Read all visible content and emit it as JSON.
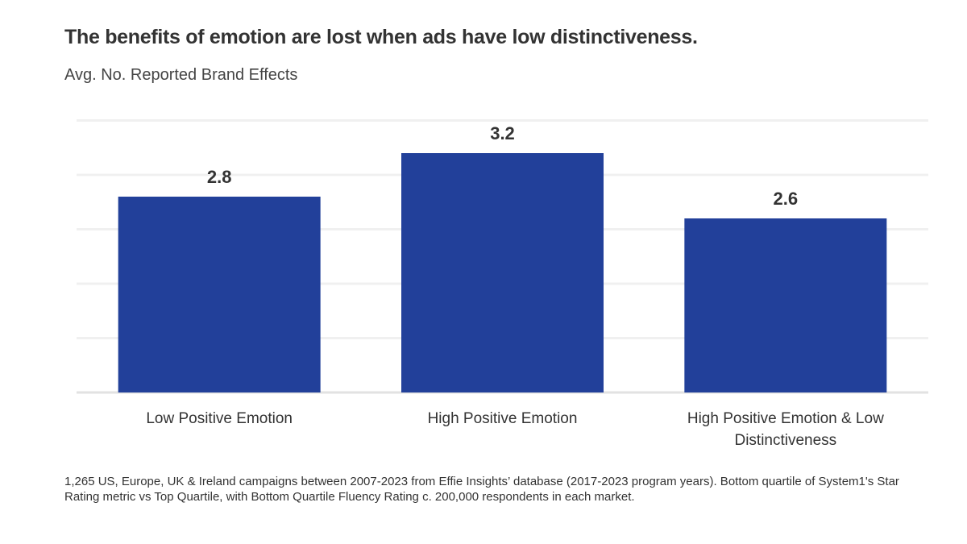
{
  "chart_data": {
    "type": "bar",
    "title": "The benefits of emotion are lost when ads have low distinctiveness.",
    "subtitle": "Avg. No. Reported Brand Effects",
    "categories": [
      [
        "Low Positive Emotion"
      ],
      [
        "High Positive Emotion"
      ],
      [
        "High Positive Emotion & Low",
        "Distinctiveness"
      ]
    ],
    "values": [
      2.8,
      3.2,
      2.6
    ],
    "data_labels": [
      "2.8",
      "3.2",
      "2.6"
    ],
    "ylim": [
      1,
      3.5
    ],
    "gridlines": [
      1,
      1.5,
      2,
      2.5,
      3,
      3.5
    ],
    "grid": true,
    "bar_color": "#22409a",
    "footnote": "1,265 US, Europe, UK & Ireland campaigns between 2007-2023 from Effie Insights’ database  (2017-2023 program years). Bottom quartile of System1's Star Rating metric vs Top Quartile, with Bottom Quartile Fluency Rating c. 200,000 respondents in each market."
  }
}
